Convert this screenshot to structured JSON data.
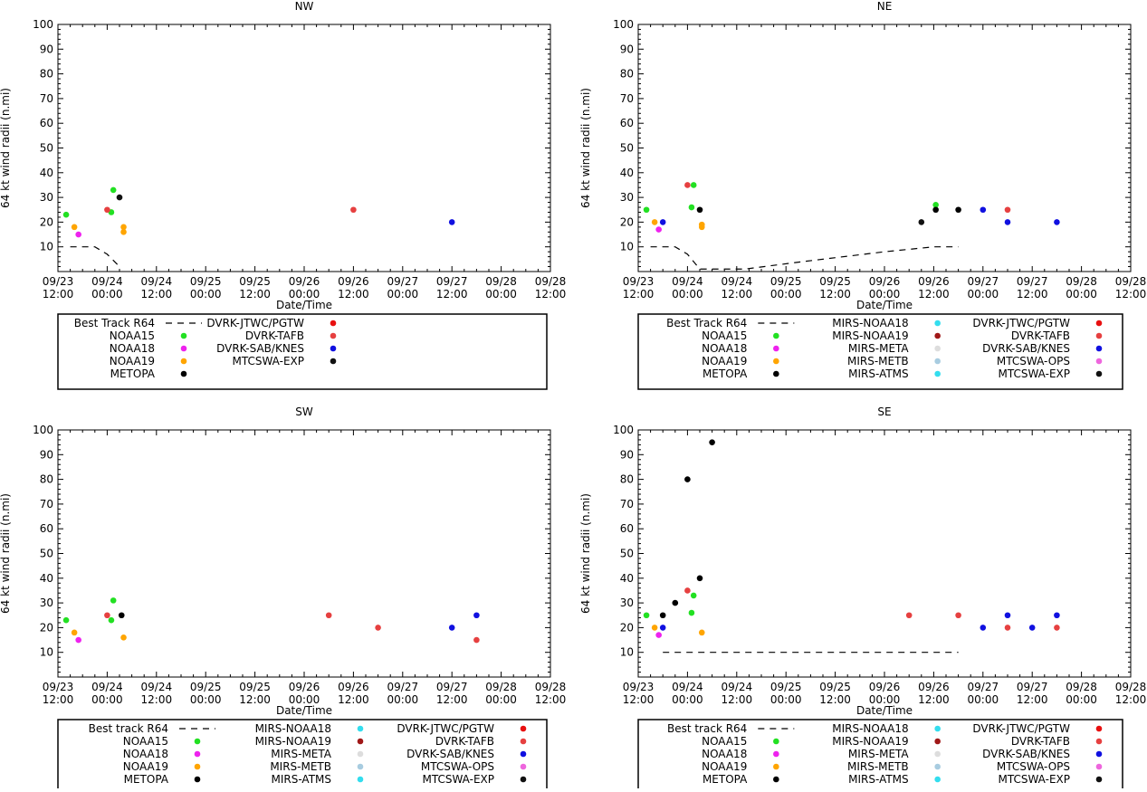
{
  "ylabel": "64 kt wind radii (n.mi)",
  "xlabel": "Date/Time",
  "yticks": [
    "100",
    "90",
    "80",
    "70",
    "60",
    "50",
    "40",
    "30",
    "20",
    "10"
  ],
  "xticks": [
    [
      "09/23",
      "12:00"
    ],
    [
      "09/24",
      "00:00"
    ],
    [
      "09/24",
      "12:00"
    ],
    [
      "09/25",
      "00:00"
    ],
    [
      "09/25",
      "12:00"
    ],
    [
      "09/26",
      "00:00"
    ],
    [
      "09/26",
      "12:00"
    ],
    [
      "09/27",
      "00:00"
    ],
    [
      "09/27",
      "12:00"
    ],
    [
      "09/28",
      "00:00"
    ],
    [
      "09/28",
      "12:00"
    ]
  ],
  "colors": {
    "best_track": "#000000",
    "noaa15": "#22e022",
    "noaa18": "#ee22ee",
    "noaa19": "#ffa500",
    "metopa": "#000000",
    "jtwc": "#e81010",
    "tafb": "#e64040",
    "sab": "#1010e0",
    "mtcswa": "#111111",
    "mirs_n18": "#33ddee",
    "mirs_n19": "#a01818",
    "mirs_meta": "#dddddd",
    "mirs_metb": "#a8cce0",
    "mirs_atms": "#33ddee",
    "mtcswa_ops": "#ee66dd"
  },
  "chart_data": [
    {
      "type": "scatter",
      "title": "NW",
      "xlabel": "Date/Time",
      "ylabel": "64 kt wind radii (n.mi)",
      "x_unit": "hours since 09/23 12:00",
      "xlim": [
        0,
        120
      ],
      "ylim": [
        0,
        100
      ],
      "best_track": {
        "name": "Best Track R64",
        "x": [
          3,
          6,
          9,
          12,
          15
        ],
        "y": [
          10,
          10,
          10,
          7,
          2
        ]
      },
      "series": [
        {
          "name": "NOAA15",
          "key": "noaa15",
          "x": [
            2,
            13,
            13.5
          ],
          "y": [
            23,
            24,
            33
          ]
        },
        {
          "name": "NOAA18",
          "key": "noaa18",
          "x": [
            5
          ],
          "y": [
            15
          ]
        },
        {
          "name": "NOAA19",
          "key": "noaa19",
          "x": [
            4,
            16,
            16
          ],
          "y": [
            18,
            16,
            18
          ]
        },
        {
          "name": "DVRK-TAFB",
          "key": "tafb",
          "x": [
            12,
            72
          ],
          "y": [
            25,
            25
          ]
        },
        {
          "name": "DVRK-SAB/KNES",
          "key": "sab",
          "x": [
            96
          ],
          "y": [
            20
          ]
        },
        {
          "name": "MTCSWA-EXP",
          "key": "mtcswa",
          "x": [
            15
          ],
          "y": [
            30
          ]
        }
      ],
      "legend": [
        [
          {
            "label": "Best Track R64",
            "key": "best_track",
            "line": true
          },
          {
            "label": "NOAA15",
            "key": "noaa15"
          },
          {
            "label": "NOAA18",
            "key": "noaa18"
          },
          {
            "label": "NOAA19",
            "key": "noaa19"
          },
          {
            "label": "METOPA",
            "key": "metopa"
          }
        ],
        [
          {
            "label": "DVRK-JTWC/PGTW",
            "key": "jtwc"
          },
          {
            "label": "DVRK-TAFB",
            "key": "tafb"
          },
          {
            "label": "DVRK-SAB/KNES",
            "key": "sab"
          },
          {
            "label": "MTCSWA-EXP",
            "key": "mtcswa"
          }
        ]
      ]
    },
    {
      "type": "scatter",
      "title": "NE",
      "xlabel": "Date/Time",
      "ylabel": "64 kt wind radii (n.mi)",
      "x_unit": "hours since 09/23 12:00",
      "xlim": [
        0,
        120
      ],
      "ylim": [
        0,
        100
      ],
      "best_track": {
        "name": "Best Track R64",
        "x": [
          3,
          6,
          9,
          12,
          15,
          26,
          40,
          60,
          72,
          78
        ],
        "y": [
          10,
          10,
          10,
          7,
          1,
          1,
          4,
          8,
          10,
          10
        ]
      },
      "series": [
        {
          "name": "NOAA15",
          "key": "noaa15",
          "x": [
            2,
            13,
            13.5,
            72.5
          ],
          "y": [
            25,
            26,
            35,
            27
          ]
        },
        {
          "name": "NOAA18",
          "key": "noaa18",
          "x": [
            5
          ],
          "y": [
            17
          ]
        },
        {
          "name": "NOAA19",
          "key": "noaa19",
          "x": [
            4,
            15.5,
            15.5
          ],
          "y": [
            20,
            18,
            19
          ]
        },
        {
          "name": "METOPA",
          "key": "metopa",
          "x": [
            15,
            72.5,
            78
          ],
          "y": [
            25,
            25,
            25
          ]
        },
        {
          "name": "DVRK-TAFB",
          "key": "tafb",
          "x": [
            12,
            90
          ],
          "y": [
            35,
            25
          ]
        },
        {
          "name": "DVRK-SAB/KNES",
          "key": "sab",
          "x": [
            6,
            84,
            90,
            102
          ],
          "y": [
            20,
            25,
            20,
            20
          ]
        },
        {
          "name": "MTCSWA-EXP",
          "key": "mtcswa",
          "x": [
            69
          ],
          "y": [
            20
          ]
        }
      ],
      "legend": [
        [
          {
            "label": "Best Track R64",
            "key": "best_track",
            "line": true
          },
          {
            "label": "NOAA15",
            "key": "noaa15"
          },
          {
            "label": "NOAA18",
            "key": "noaa18"
          },
          {
            "label": "NOAA19",
            "key": "noaa19"
          },
          {
            "label": "METOPA",
            "key": "metopa"
          }
        ],
        [
          {
            "label": "MIRS-NOAA18",
            "key": "mirs_n18"
          },
          {
            "label": "MIRS-NOAA19",
            "key": "mirs_n19"
          },
          {
            "label": "MIRS-META",
            "key": "mirs_meta"
          },
          {
            "label": "MIRS-METB",
            "key": "mirs_metb"
          },
          {
            "label": "MIRS-ATMS",
            "key": "mirs_atms"
          }
        ],
        [
          {
            "label": "DVRK-JTWC/PGTW",
            "key": "jtwc"
          },
          {
            "label": "DVRK-TAFB",
            "key": "tafb"
          },
          {
            "label": "DVRK-SAB/KNES",
            "key": "sab"
          },
          {
            "label": "MTCSWA-OPS",
            "key": "mtcswa_ops"
          },
          {
            "label": "MTCSWA-EXP",
            "key": "mtcswa"
          }
        ]
      ]
    },
    {
      "type": "scatter",
      "title": "SW",
      "xlabel": "Date/Time",
      "ylabel": "64 kt wind radii (n.mi)",
      "x_unit": "hours since 09/23 12:00",
      "xlim": [
        0,
        120
      ],
      "ylim": [
        0,
        100
      ],
      "best_track": null,
      "series": [
        {
          "name": "NOAA15",
          "key": "noaa15",
          "x": [
            2,
            13,
            13.5
          ],
          "y": [
            23,
            23,
            31
          ]
        },
        {
          "name": "NOAA18",
          "key": "noaa18",
          "x": [
            5
          ],
          "y": [
            15
          ]
        },
        {
          "name": "NOAA19",
          "key": "noaa19",
          "x": [
            4,
            16
          ],
          "y": [
            18,
            16
          ]
        },
        {
          "name": "METOPA",
          "key": "metopa",
          "x": [
            15.5
          ],
          "y": [
            25
          ]
        },
        {
          "name": "DVRK-TAFB",
          "key": "tafb",
          "x": [
            12,
            66,
            78,
            102
          ],
          "y": [
            25,
            25,
            20,
            15
          ]
        },
        {
          "name": "DVRK-SAB/KNES",
          "key": "sab",
          "x": [
            96,
            102
          ],
          "y": [
            20,
            25
          ]
        }
      ],
      "legend": [
        [
          {
            "label": "Best track R64",
            "key": "best_track",
            "line": true
          },
          {
            "label": "NOAA15",
            "key": "noaa15"
          },
          {
            "label": "NOAA18",
            "key": "noaa18"
          },
          {
            "label": "NOAA19",
            "key": "noaa19"
          },
          {
            "label": "METOPA",
            "key": "metopa"
          }
        ],
        [
          {
            "label": "MIRS-NOAA18",
            "key": "mirs_n18"
          },
          {
            "label": "MIRS-NOAA19",
            "key": "mirs_n19"
          },
          {
            "label": "MIRS-META",
            "key": "mirs_meta"
          },
          {
            "label": "MIRS-METB",
            "key": "mirs_metb"
          },
          {
            "label": "MIRS-ATMS",
            "key": "mirs_atms"
          }
        ],
        [
          {
            "label": "DVRK-JTWC/PGTW",
            "key": "jtwc"
          },
          {
            "label": "DVRK-TAFB",
            "key": "tafb"
          },
          {
            "label": "DVRK-SAB/KNES",
            "key": "sab"
          },
          {
            "label": "MTCSWA-OPS",
            "key": "mtcswa_ops"
          },
          {
            "label": "MTCSWA-EXP",
            "key": "mtcswa"
          }
        ]
      ]
    },
    {
      "type": "scatter",
      "title": "SE",
      "xlabel": "Date/Time",
      "ylabel": "64 kt wind radii (n.mi)",
      "x_unit": "hours since 09/23 12:00",
      "xlim": [
        0,
        120
      ],
      "ylim": [
        0,
        100
      ],
      "best_track": {
        "name": "Best track R64",
        "x": [
          6,
          78
        ],
        "y": [
          10,
          10
        ]
      },
      "series": [
        {
          "name": "NOAA15",
          "key": "noaa15",
          "x": [
            2,
            13,
            13.5
          ],
          "y": [
            25,
            26,
            33
          ]
        },
        {
          "name": "NOAA18",
          "key": "noaa18",
          "x": [
            5
          ],
          "y": [
            17
          ]
        },
        {
          "name": "NOAA19",
          "key": "noaa19",
          "x": [
            4,
            15.5
          ],
          "y": [
            20,
            18
          ]
        },
        {
          "name": "METOPA",
          "key": "metopa",
          "x": [
            6,
            9,
            12,
            15,
            18
          ],
          "y": [
            25,
            30,
            80,
            40,
            95
          ]
        },
        {
          "name": "DVRK-TAFB",
          "key": "tafb",
          "x": [
            12,
            66,
            78,
            90,
            102
          ],
          "y": [
            35,
            25,
            25,
            20,
            20
          ]
        },
        {
          "name": "DVRK-SAB/KNES",
          "key": "sab",
          "x": [
            6,
            84,
            90,
            96,
            102
          ],
          "y": [
            20,
            20,
            25,
            20,
            25
          ]
        }
      ],
      "legend": [
        [
          {
            "label": "Best track R64",
            "key": "best_track",
            "line": true
          },
          {
            "label": "NOAA15",
            "key": "noaa15"
          },
          {
            "label": "NOAA18",
            "key": "noaa18"
          },
          {
            "label": "NOAA19",
            "key": "noaa19"
          },
          {
            "label": "METOPA",
            "key": "metopa"
          }
        ],
        [
          {
            "label": "MIRS-NOAA18",
            "key": "mirs_n18"
          },
          {
            "label": "MIRS-NOAA19",
            "key": "mirs_n19"
          },
          {
            "label": "MIRS-META",
            "key": "mirs_meta"
          },
          {
            "label": "MIRS-METB",
            "key": "mirs_metb"
          },
          {
            "label": "MIRS-ATMS",
            "key": "mirs_atms"
          }
        ],
        [
          {
            "label": "DVRK-JTWC/PGTW",
            "key": "jtwc"
          },
          {
            "label": "DVRK-TAFB",
            "key": "tafb"
          },
          {
            "label": "DVRK-SAB/KNES",
            "key": "sab"
          },
          {
            "label": "MTCSWA-OPS",
            "key": "mtcswa_ops"
          },
          {
            "label": "MTCSWA-EXP",
            "key": "mtcswa"
          }
        ]
      ]
    }
  ]
}
